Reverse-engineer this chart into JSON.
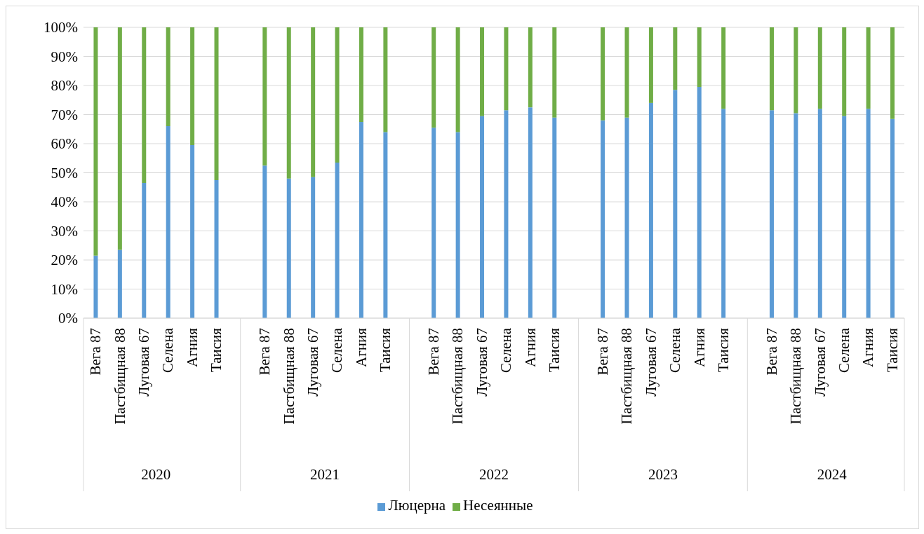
{
  "chart_data": {
    "type": "bar",
    "stacked": true,
    "categories": [
      "Вега 87",
      "Пастбищная 88",
      "Луговая 67",
      "Селена",
      "Агния",
      "Таисия",
      null,
      "Вега 87",
      "Пастбищная 88",
      "Луговая 67",
      "Селена",
      "Агния",
      "Таисия",
      null,
      "Вега 87",
      "Пастбищная 88",
      "Луговая 67",
      "Селена",
      "Агния",
      "Таисия",
      null,
      "Вега 87",
      "Пастбищная 88",
      "Луговая 67",
      "Селена",
      "Агния",
      "Таисия",
      null,
      "Вега 87",
      "Пастбищная 88",
      "Луговая 67",
      "Селена",
      "Агния",
      "Таисия"
    ],
    "series": [
      {
        "name": "Люцерна",
        "color": "#5b9bd5",
        "values": [
          21.5,
          23.5,
          46.5,
          66,
          59.5,
          47.5,
          null,
          52.5,
          48,
          48.5,
          53.5,
          67.5,
          64,
          null,
          65.5,
          64,
          69.5,
          71.5,
          72.5,
          69,
          null,
          68,
          69,
          74,
          78.5,
          79.5,
          72,
          null,
          71.5,
          70.5,
          72,
          69.5,
          72,
          68.5
        ]
      },
      {
        "name": "Несеянные",
        "color": "#70ad47",
        "values": [
          78.5,
          76.5,
          53.5,
          34,
          40.5,
          52.5,
          null,
          47.5,
          52,
          51.5,
          46.5,
          32.5,
          36,
          null,
          34.5,
          36,
          30.5,
          28.5,
          27.5,
          31,
          null,
          32,
          31,
          26,
          21.5,
          20.5,
          28,
          null,
          28.5,
          29.5,
          28,
          30.5,
          28,
          31.5
        ]
      }
    ],
    "annotations": [
      "2020",
      "2021",
      "2022",
      "2023",
      "2024"
    ],
    "ylim": [
      0,
      100
    ],
    "yticks": [
      {
        "value": 0,
        "label": "0%"
      },
      {
        "value": 10,
        "label": "10%"
      },
      {
        "value": 20,
        "label": "20%"
      },
      {
        "value": 30,
        "label": "30%"
      },
      {
        "value": 40,
        "label": "40%"
      },
      {
        "value": 50,
        "label": "50%"
      },
      {
        "value": 60,
        "label": "60%"
      },
      {
        "value": 70,
        "label": "70%"
      },
      {
        "value": 80,
        "label": "80%"
      },
      {
        "value": 90,
        "label": "90%"
      },
      {
        "value": 100,
        "label": "100%"
      }
    ],
    "grid": "y",
    "legend": "bottom"
  }
}
